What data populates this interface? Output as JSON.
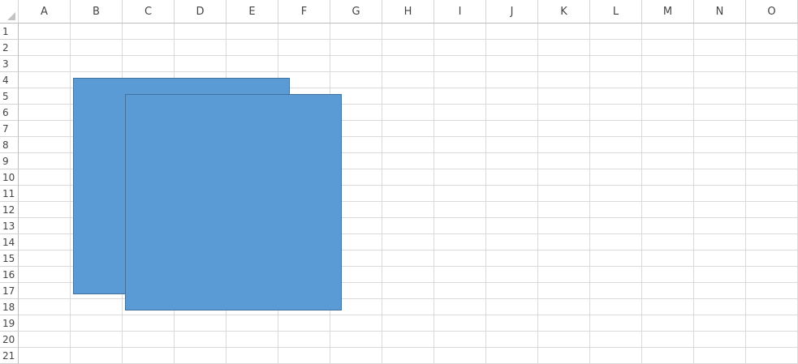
{
  "columns": [
    "A",
    "B",
    "C",
    "D",
    "E",
    "F",
    "G",
    "H",
    "I",
    "J",
    "K",
    "L",
    "M",
    "N",
    "O"
  ],
  "rows": [
    "1",
    "2",
    "3",
    "4",
    "5",
    "6",
    "7",
    "8",
    "9",
    "10",
    "11",
    "12",
    "13",
    "14",
    "15",
    "16",
    "17",
    "18",
    "19",
    "20",
    "21"
  ],
  "colors": {
    "shape_fill": "#5b9bd5",
    "shape_border": "#41719c",
    "gridline": "#dadada",
    "header_text": "#444444"
  },
  "shapes": [
    {
      "name": "rectangle-1",
      "type": "rectangle"
    },
    {
      "name": "rectangle-2",
      "type": "rectangle"
    }
  ]
}
